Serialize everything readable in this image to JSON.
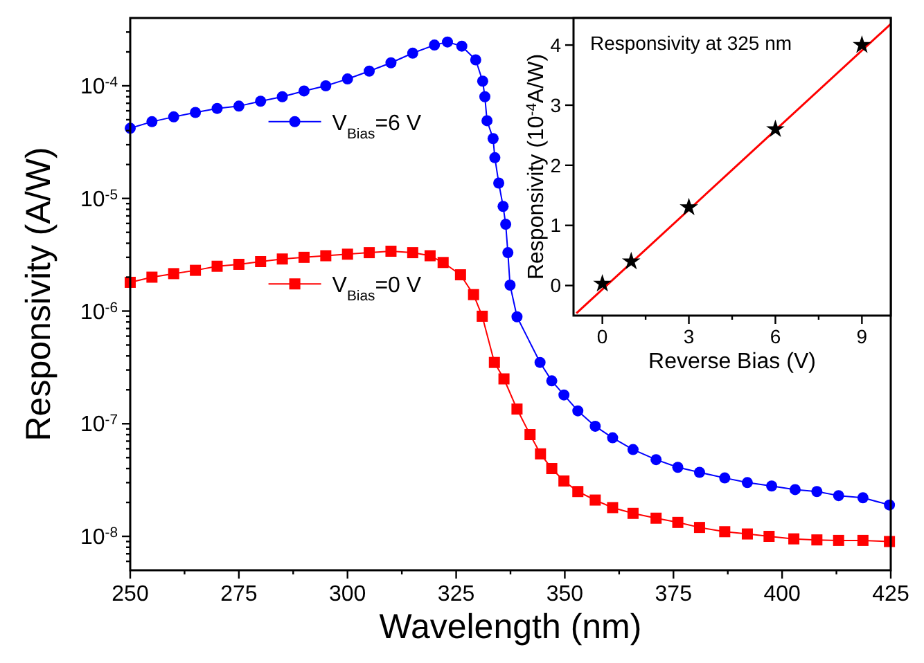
{
  "chart_data": [
    {
      "type": "line",
      "legend": "left",
      "xlabel": "Wavelength (nm)",
      "ylabel": "Responsivity (A/W)",
      "log": "y",
      "xlim": [
        250,
        425
      ],
      "ylim": [
        5e-09,
        0.0004
      ],
      "xticks": [
        250,
        {
          "value": 262.5,
          "label": null
        },
        275,
        {
          "value": 287.5,
          "label": null
        },
        300,
        {
          "value": 312.5,
          "label": null
        },
        325,
        {
          "value": 337.5,
          "label": null
        },
        350,
        {
          "value": 362.5,
          "label": null
        },
        375,
        {
          "value": 387.5,
          "label": null
        },
        400,
        {
          "value": 412.5,
          "label": null
        },
        425
      ],
      "yticks": [
        {
          "value": 6e-09,
          "label": null
        },
        {
          "value": 7e-09,
          "label": null
        },
        {
          "value": 8e-09,
          "label": null
        },
        {
          "value": 9e-09,
          "label": null
        },
        {
          "value": 1e-08,
          "label": "10$^{-8}$"
        },
        {
          "value": 2e-08,
          "label": null
        },
        {
          "value": 3e-08,
          "label": null
        },
        {
          "value": 4e-08,
          "label": null
        },
        {
          "value": 5e-08,
          "label": null
        },
        {
          "value": 6e-08,
          "label": null
        },
        {
          "value": 7e-08,
          "label": null
        },
        {
          "value": 8e-08,
          "label": null
        },
        {
          "value": 9e-08,
          "label": null
        },
        {
          "value": 1e-07,
          "label": "10$^{-7}$"
        },
        {
          "value": 2e-07,
          "label": null
        },
        {
          "value": 3e-07,
          "label": null
        },
        {
          "value": 4e-07,
          "label": null
        },
        {
          "value": 5e-07,
          "label": null
        },
        {
          "value": 6e-07,
          "label": null
        },
        {
          "value": 7e-07,
          "label": null
        },
        {
          "value": 8e-07,
          "label": null
        },
        {
          "value": 9e-07,
          "label": null
        },
        {
          "value": 1e-06,
          "label": "10$^{-6}$"
        },
        {
          "value": 2e-06,
          "label": null
        },
        {
          "value": 3e-06,
          "label": null
        },
        {
          "value": 4e-06,
          "label": null
        },
        {
          "value": 5e-06,
          "label": null
        },
        {
          "value": 6e-06,
          "label": null
        },
        {
          "value": 7e-06,
          "label": null
        },
        {
          "value": 8e-06,
          "label": null
        },
        {
          "value": 9e-06,
          "label": null
        },
        {
          "value": 1e-05,
          "label": "10$^{-5}$"
        },
        {
          "value": 2e-05,
          "label": null
        },
        {
          "value": 3e-05,
          "label": null
        },
        {
          "value": 4e-05,
          "label": null
        },
        {
          "value": 5e-05,
          "label": null
        },
        {
          "value": 6e-05,
          "label": null
        },
        {
          "value": 7e-05,
          "label": null
        },
        {
          "value": 8e-05,
          "label": null
        },
        {
          "value": 9e-05,
          "label": null
        },
        {
          "value": 0.0001,
          "label": "10$^{-4}$"
        },
        {
          "value": 0.0002,
          "label": null
        },
        {
          "value": 0.0003,
          "label": null
        }
      ],
      "series": [
        {
          "name": "V$_{Bias}$=6 V",
          "color": "#0000ff",
          "marker": "circle",
          "x": [
            250,
            255,
            260,
            265,
            270,
            275,
            280,
            285,
            290,
            295,
            300,
            305,
            310,
            315,
            320,
            323,
            326.3,
            329.5,
            331.1,
            331.6,
            332.1,
            333.5,
            333.9,
            334.8,
            335.8,
            336.4,
            336.9,
            337.4,
            339,
            344.3,
            347,
            349.8,
            353,
            357,
            361,
            365.7,
            371,
            376,
            381,
            386.8,
            392,
            397.6,
            403,
            408,
            413,
            418.6,
            424.7
          ],
          "values": [
            4.2e-05,
            4.8e-05,
            5.3e-05,
            5.8e-05,
            6.3e-05,
            6.6e-05,
            7.3e-05,
            8e-05,
            9e-05,
            0.0001,
            0.000115,
            0.000135,
            0.00016,
            0.000195,
            0.00023,
            0.000245,
            0.000225,
            0.00017,
            0.00011,
            8e-05,
            4.9e-05,
            3.4e-05,
            2.3e-05,
            1.37e-05,
            8.5e-06,
            5.9e-06,
            3.3e-06,
            1.7e-06,
            8.9e-07,
            3.5e-07,
            2.4e-07,
            1.8e-07,
            1.3e-07,
            9.5e-08,
            7.5e-08,
            5.9e-08,
            4.8e-08,
            4.1e-08,
            3.7e-08,
            3.3e-08,
            3e-08,
            2.8e-08,
            2.6e-08,
            2.5e-08,
            2.3e-08,
            2.2e-08,
            1.9e-08
          ]
        },
        {
          "name": "V$_{Bias}$=0 V",
          "color": "#ff0000",
          "marker": "square",
          "x": [
            250,
            255,
            260,
            265,
            270,
            275,
            280,
            285,
            290,
            295,
            300,
            305,
            310,
            315,
            319,
            322,
            326,
            329,
            331,
            333.8,
            336,
            339,
            342,
            344.4,
            347,
            349.8,
            353,
            357,
            361,
            365.7,
            371,
            376,
            381,
            386.8,
            392,
            397,
            402.7,
            408,
            413,
            418.6,
            424.7
          ],
          "values": [
            1.8e-06,
            2e-06,
            2.15e-06,
            2.3e-06,
            2.5e-06,
            2.6e-06,
            2.75e-06,
            2.9e-06,
            3e-06,
            3.1e-06,
            3.2e-06,
            3.3e-06,
            3.4e-06,
            3.3e-06,
            3.1e-06,
            2.7e-06,
            2.1e-06,
            1.4e-06,
            9e-07,
            3.5e-07,
            2.5e-07,
            1.35e-07,
            8e-08,
            5.4e-08,
            4e-08,
            3.1e-08,
            2.5e-08,
            2.1e-08,
            1.8e-08,
            1.6e-08,
            1.45e-08,
            1.33e-08,
            1.2e-08,
            1.1e-08,
            1.05e-08,
            1e-08,
            9.5e-09,
            9.3e-09,
            9.2e-09,
            9.2e-09,
            9e-09
          ]
        }
      ]
    },
    {
      "type": "scatter",
      "title": "Responsivity at 325 nm",
      "xlabel": "Reverse Bias (V)",
      "ylabel": "Responsivity (10$^{-4}$A/W)",
      "xlim": [
        -1,
        10
      ],
      "ylim": [
        -0.5,
        4.45
      ],
      "xticks": [
        0,
        {
          "value": 1.5,
          "label": null
        },
        3,
        {
          "value": 4.5,
          "label": null
        },
        6,
        {
          "value": 7.5,
          "label": null
        },
        9
      ],
      "yticks": [
        0,
        1,
        2,
        3,
        4
      ],
      "series": [
        {
          "type": "line",
          "color": "#ff0000",
          "marker": "none",
          "x": [
            -0.9,
            10
          ],
          "values": [
            -0.46,
            4.35
          ]
        },
        {
          "color": "#000000",
          "marker": "star",
          "x": [
            0,
            1,
            3,
            6,
            9
          ],
          "values": [
            0.03,
            0.4,
            1.3,
            2.6,
            4
          ]
        }
      ]
    }
  ]
}
